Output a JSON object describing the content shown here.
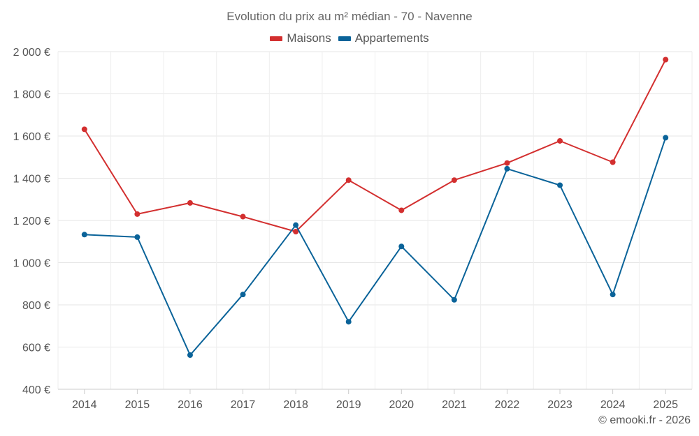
{
  "chart_data": {
    "type": "line",
    "title": "Evolution du prix au m² médian - 70 - Navenne",
    "categories": [
      "2014",
      "2015",
      "2016",
      "2017",
      "2018",
      "2019",
      "2020",
      "2021",
      "2022",
      "2023",
      "2024",
      "2025"
    ],
    "series": [
      {
        "name": "Maisons",
        "color": "#d32f2f",
        "values": [
          1632,
          1230,
          1283,
          1218,
          1147,
          1391,
          1248,
          1391,
          1472,
          1577,
          1476,
          1962
        ]
      },
      {
        "name": "Appartements",
        "color": "#0a6399",
        "values": [
          1133,
          1121,
          562,
          849,
          1178,
          720,
          1077,
          824,
          1445,
          1367,
          849,
          1592
        ]
      }
    ],
    "ylim": [
      400,
      2000
    ],
    "yticks": [
      400,
      600,
      800,
      1000,
      1200,
      1400,
      1600,
      1800,
      2000
    ],
    "ytick_labels": [
      "400 €",
      "600 €",
      "800 €",
      "1 000 €",
      "1 200 €",
      "1 400 €",
      "1 600 €",
      "1 800 €",
      "2 000 €"
    ],
    "grid": true,
    "legend_position": "top-center"
  },
  "credit": "© emooki.fr - 2026"
}
